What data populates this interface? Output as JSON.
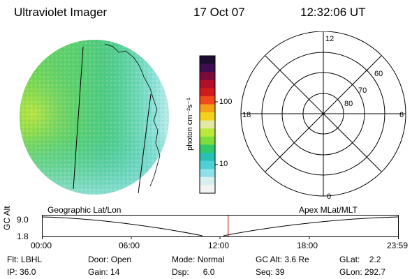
{
  "header": {
    "title": "Ultraviolet Imager",
    "date": "17 Oct 07",
    "time": "12:32:06 UT"
  },
  "colorbar": {
    "unit_label": "photon cm⁻²s⁻¹",
    "ticks": [
      "100",
      "10"
    ],
    "colors": [
      "#1a0d2e",
      "#3b0e4f",
      "#7a0b38",
      "#b0102a",
      "#d01b1b",
      "#ef4a1a",
      "#f6a019",
      "#f4d21c",
      "#e4e8a5",
      "#b8e83a",
      "#7fdc3d",
      "#33c96a",
      "#2ac0b5",
      "#4ed0d6",
      "#8fe1e8",
      "#d8eef0",
      "#f2f4f4"
    ]
  },
  "polar": {
    "labels": {
      "top": "12",
      "bottom": "0",
      "left": "18",
      "right": "6"
    },
    "lat_labels": [
      "60",
      "70",
      "80"
    ]
  },
  "timeline": {
    "left_title": "Geographic Lat/Lon",
    "right_title": "Apex MLat/MLT",
    "y_axis_label": "GC Alt",
    "y_ticks": [
      "9.0",
      "1.8"
    ],
    "x_ticks": [
      "00:00",
      "06:00",
      "12:00",
      "18:00",
      "23:59"
    ],
    "current_time_fraction": 0.522,
    "marker_color": "#cc0000"
  },
  "status": {
    "row1": [
      {
        "label": "Flt:",
        "value": "LBHL"
      },
      {
        "label": "Door:",
        "value": "Open"
      },
      {
        "label": "Mode:",
        "value": "Normal"
      },
      {
        "label": "GC Alt:",
        "value": "3.6 Re"
      },
      {
        "label": "GLat:",
        "value": "2.2"
      }
    ],
    "row2": [
      {
        "label": "IP:",
        "value": "36.0"
      },
      {
        "label": "Gain:",
        "value": "14"
      },
      {
        "label": "Dsp:",
        "value": "6.0"
      },
      {
        "label": "Seq:",
        "value": "39"
      },
      {
        "label": "GLon:",
        "value": "292.7"
      }
    ]
  }
}
